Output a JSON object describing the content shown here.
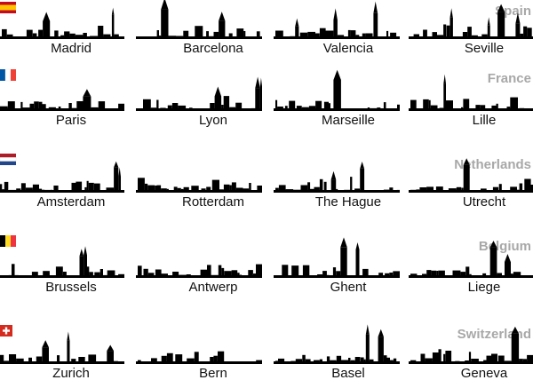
{
  "countries": [
    {
      "name": "Spain",
      "cities": [
        "Madrid",
        "Barcelona",
        "Valencia",
        "Seville"
      ]
    },
    {
      "name": "France",
      "cities": [
        "Paris",
        "Lyon",
        "Marseille",
        "Lille"
      ]
    },
    {
      "name": "Netherlands",
      "cities": [
        "Amsterdam",
        "Rotterdam",
        "The Hague",
        "Utrecht"
      ]
    },
    {
      "name": "Belgium",
      "cities": [
        "Brussels",
        "Antwerp",
        "Ghent",
        "Liege"
      ]
    },
    {
      "name": "Switzerland",
      "cities": [
        "Zurich",
        "Bern",
        "Basel",
        "Geneva"
      ]
    }
  ]
}
